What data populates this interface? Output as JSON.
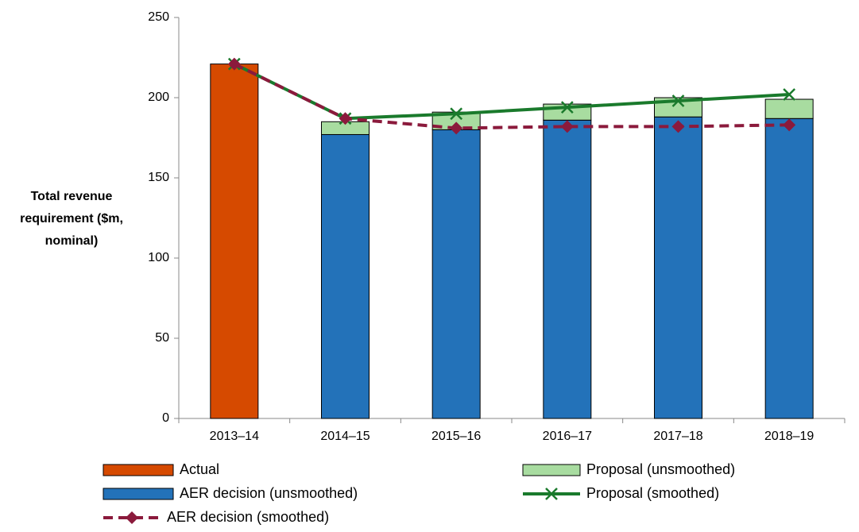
{
  "chart_data": {
    "type": "bar",
    "y_label": "Total revenue requirement ($m, nominal)",
    "categories": [
      "2013–14",
      "2014–15",
      "2015–16",
      "2016–17",
      "2017–18",
      "2018–19"
    ],
    "series": [
      {
        "name": "Actual",
        "kind": "bar",
        "color": "#d64a00",
        "values": [
          221,
          null,
          null,
          null,
          null,
          null
        ]
      },
      {
        "name": "AER decision (unsmoothed)",
        "kind": "bar",
        "color": "#2372b9",
        "values": [
          null,
          177,
          180,
          186,
          188,
          187
        ]
      },
      {
        "name": "Proposal (unsmoothed)",
        "kind": "bar",
        "color": "#a8dca0",
        "values": [
          null,
          8,
          11,
          10,
          12,
          12
        ]
      },
      {
        "name": "Proposal (smoothed)",
        "kind": "line",
        "marker": "x",
        "color": "#1a7a2c",
        "values": [
          221,
          187,
          190,
          194,
          198,
          202
        ]
      },
      {
        "name": "AER decision (smoothed)",
        "kind": "line",
        "marker": "diamond",
        "dashed": true,
        "color": "#8b1a3c",
        "values": [
          221,
          187,
          181,
          182,
          182,
          183
        ]
      }
    ],
    "ylim": [
      0,
      250
    ],
    "yticks": [
      0,
      50,
      100,
      150,
      200,
      250
    ],
    "grid": false
  }
}
